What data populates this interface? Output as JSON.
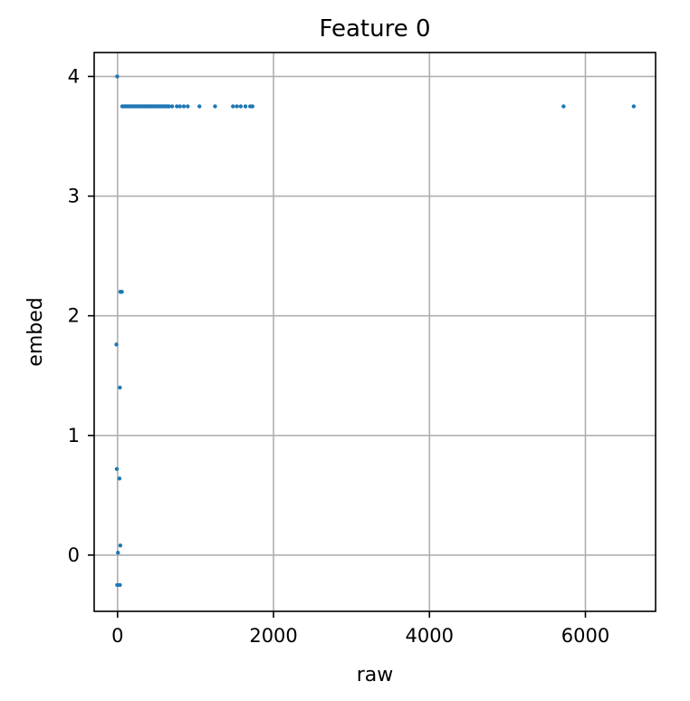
{
  "chart_data": {
    "type": "scatter",
    "title": "Feature 0",
    "xlabel": "raw",
    "ylabel": "embed",
    "xlim": [
      -300,
      6900
    ],
    "ylim": [
      -0.47,
      4.2
    ],
    "xticks": [
      0,
      2000,
      4000,
      6000
    ],
    "xtick_labels": [
      "0",
      "2000",
      "4000",
      "6000"
    ],
    "yticks": [
      0,
      1,
      2,
      3,
      4
    ],
    "ytick_labels": [
      "0",
      "1",
      "2",
      "3",
      "4"
    ],
    "grid": true,
    "marker_color": "#1f77b4",
    "series": [
      {
        "points": [
          [
            -5,
            4.0
          ],
          [
            60,
            3.75
          ],
          [
            80,
            3.75
          ],
          [
            100,
            3.75
          ],
          [
            120,
            3.75
          ],
          [
            140,
            3.75
          ],
          [
            160,
            3.75
          ],
          [
            180,
            3.75
          ],
          [
            200,
            3.75
          ],
          [
            220,
            3.75
          ],
          [
            240,
            3.75
          ],
          [
            260,
            3.75
          ],
          [
            280,
            3.75
          ],
          [
            300,
            3.75
          ],
          [
            320,
            3.75
          ],
          [
            340,
            3.75
          ],
          [
            360,
            3.75
          ],
          [
            380,
            3.75
          ],
          [
            400,
            3.75
          ],
          [
            420,
            3.75
          ],
          [
            440,
            3.75
          ],
          [
            460,
            3.75
          ],
          [
            480,
            3.75
          ],
          [
            500,
            3.75
          ],
          [
            520,
            3.75
          ],
          [
            540,
            3.75
          ],
          [
            560,
            3.75
          ],
          [
            580,
            3.75
          ],
          [
            600,
            3.75
          ],
          [
            620,
            3.75
          ],
          [
            640,
            3.75
          ],
          [
            660,
            3.75
          ],
          [
            700,
            3.75
          ],
          [
            760,
            3.75
          ],
          [
            800,
            3.75
          ],
          [
            850,
            3.75
          ],
          [
            900,
            3.75
          ],
          [
            1050,
            3.75
          ],
          [
            1250,
            3.75
          ],
          [
            1480,
            3.75
          ],
          [
            1530,
            3.75
          ],
          [
            1580,
            3.75
          ],
          [
            1640,
            3.75
          ],
          [
            1700,
            3.75
          ],
          [
            1730,
            3.75
          ],
          [
            5720,
            3.75
          ],
          [
            6620,
            3.75
          ],
          [
            35,
            2.2
          ],
          [
            55,
            2.2
          ],
          [
            -15,
            1.76
          ],
          [
            30,
            1.4
          ],
          [
            -10,
            0.72
          ],
          [
            25,
            0.64
          ],
          [
            35,
            0.08
          ],
          [
            5,
            0.02
          ],
          [
            -5,
            -0.25
          ],
          [
            30,
            -0.25
          ]
        ]
      }
    ]
  }
}
